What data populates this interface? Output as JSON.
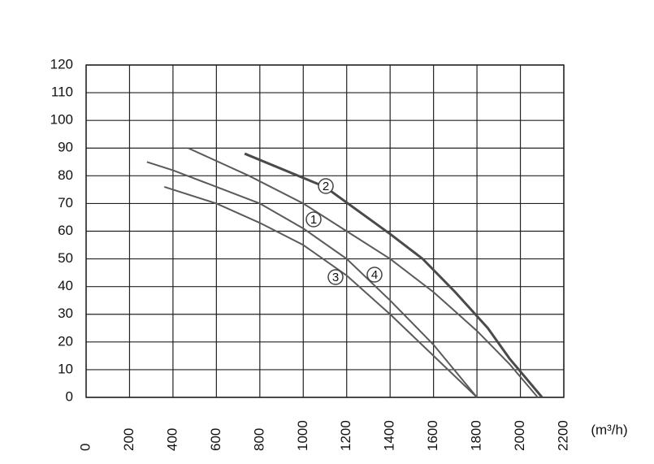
{
  "chart_data": {
    "type": "line",
    "x_label": "(m³/h)",
    "xlim": [
      0,
      2200
    ],
    "xticks": [
      0,
      200,
      400,
      600,
      800,
      1000,
      1200,
      1400,
      1600,
      1800,
      2000,
      2200
    ],
    "ylim": [
      0,
      120
    ],
    "yticks": [
      0,
      10,
      20,
      30,
      40,
      50,
      60,
      70,
      80,
      90,
      100,
      110,
      120
    ],
    "grid": true,
    "series": [
      {
        "name": "1",
        "color": "#5a5a5a",
        "x": [
          470,
          750,
          1000,
          1200,
          1400,
          1600,
          1800,
          1950,
          2080
        ],
        "values": [
          90,
          80,
          70,
          60,
          50,
          38,
          24,
          12,
          0
        ]
      },
      {
        "name": "2",
        "color": "#4a4a4a",
        "x": [
          730,
          1100,
          1400,
          1550,
          1700,
          1850,
          1950,
          2100
        ],
        "values": [
          88,
          76,
          59,
          50,
          38,
          25,
          14,
          0
        ]
      },
      {
        "name": "3",
        "color": "#5a5a5a",
        "x": [
          360,
          600,
          800,
          1000,
          1200,
          1400,
          1600,
          1800
        ],
        "values": [
          76,
          70,
          63,
          55,
          44,
          30,
          15,
          0
        ]
      },
      {
        "name": "4",
        "color": "#5a5a5a",
        "x": [
          280,
          400,
          600,
          800,
          1000,
          1200,
          1400,
          1600,
          1800
        ],
        "values": [
          85,
          82,
          76,
          70,
          61,
          50,
          35,
          19,
          0
        ]
      }
    ]
  }
}
